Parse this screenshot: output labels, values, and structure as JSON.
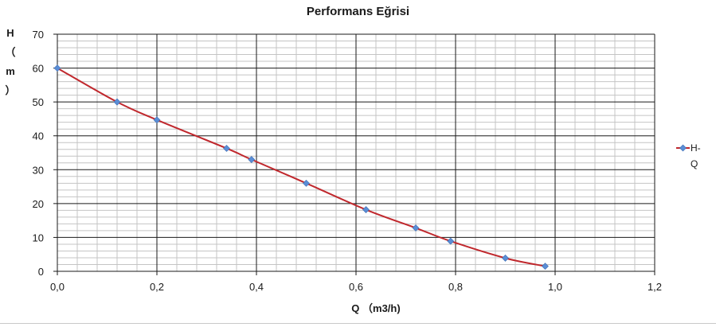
{
  "chart_data": {
    "type": "line",
    "title": "Performans Eğrisi",
    "xlabel": "Q （m3/h)",
    "ylabel": "H\n（\nm\n）",
    "xlim": [
      0,
      1.2
    ],
    "ylim": [
      0,
      70
    ],
    "x_ticks": [
      "0,0",
      "0,2",
      "0,4",
      "0,6",
      "0,8",
      "1,0",
      "1,2"
    ],
    "y_ticks": [
      "0",
      "10",
      "20",
      "30",
      "40",
      "50",
      "60",
      "70"
    ],
    "grid": true,
    "legend_position": "right",
    "series": [
      {
        "name": "H-Q",
        "legend_label": "H-\nQ",
        "line_color": "#c0282d",
        "marker_color": "#5b8ed6",
        "x": [
          0.0,
          0.12,
          0.2,
          0.34,
          0.39,
          0.5,
          0.62,
          0.72,
          0.79,
          0.9,
          0.98
        ],
        "y": [
          60,
          50,
          44.7,
          36.3,
          33,
          26,
          18.2,
          12.8,
          8.9,
          3.9,
          1.5
        ]
      }
    ]
  }
}
